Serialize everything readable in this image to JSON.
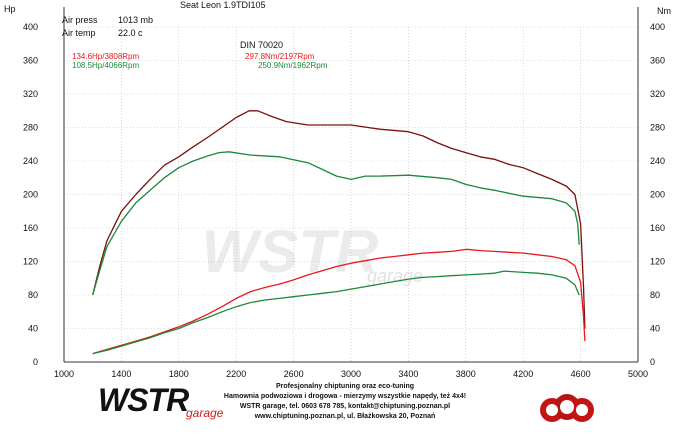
{
  "chart_data": {
    "type": "line",
    "title": "Seat Leon 1.9TDI105",
    "left_axis_label": "Hp",
    "right_axis_label": "Nm",
    "standard": "DIN 70020",
    "conditions": [
      {
        "label": "Air press",
        "value": "1013 mb"
      },
      {
        "label": "Air temp",
        "value": "22.0 c"
      }
    ],
    "xlim": [
      1000,
      5000
    ],
    "ylim": [
      0,
      400
    ],
    "x_ticks": [
      "1000",
      "1400",
      "1800",
      "2200",
      "2600",
      "3000",
      "3400",
      "3800",
      "4200",
      "4600",
      "5000"
    ],
    "y_ticks": [
      "0",
      "40",
      "80",
      "120",
      "160",
      "200",
      "240",
      "280",
      "320",
      "360",
      "400"
    ],
    "grid": true,
    "readouts": [
      {
        "text": "134.6Hp/3808Rpm",
        "color": "#e8191e"
      },
      {
        "text": "297.8Nm/2197Rpm",
        "color": "#e8191e"
      },
      {
        "text": "108.5Hp/4066Rpm",
        "color": "#1a8a3a"
      },
      {
        "text": "250.9Nm/1962Rpm",
        "color": "#1a8a3a"
      }
    ],
    "series": [
      {
        "kind": "torque-after",
        "color": "#7a1010",
        "points": [
          [
            1200,
            80
          ],
          [
            1250,
            115
          ],
          [
            1300,
            145
          ],
          [
            1400,
            180
          ],
          [
            1500,
            200
          ],
          [
            1600,
            218
          ],
          [
            1700,
            235
          ],
          [
            1800,
            245
          ],
          [
            1900,
            257
          ],
          [
            2000,
            268
          ],
          [
            2100,
            280
          ],
          [
            2200,
            292
          ],
          [
            2290,
            300
          ],
          [
            2350,
            300
          ],
          [
            2450,
            293
          ],
          [
            2550,
            287
          ],
          [
            2700,
            283
          ],
          [
            2850,
            283
          ],
          [
            3000,
            283
          ],
          [
            3200,
            278
          ],
          [
            3400,
            275
          ],
          [
            3500,
            270
          ],
          [
            3600,
            262
          ],
          [
            3700,
            255
          ],
          [
            3800,
            250
          ],
          [
            3900,
            245
          ],
          [
            4000,
            242
          ],
          [
            4100,
            236
          ],
          [
            4200,
            232
          ],
          [
            4300,
            225
          ],
          [
            4400,
            218
          ],
          [
            4500,
            210
          ],
          [
            4560,
            200
          ],
          [
            4600,
            165
          ],
          [
            4620,
            90
          ],
          [
            4630,
            40
          ]
        ]
      },
      {
        "kind": "torque-stock",
        "color": "#1a8a3a",
        "points": [
          [
            1200,
            80
          ],
          [
            1250,
            110
          ],
          [
            1300,
            138
          ],
          [
            1400,
            168
          ],
          [
            1500,
            190
          ],
          [
            1600,
            205
          ],
          [
            1700,
            220
          ],
          [
            1800,
            232
          ],
          [
            1900,
            240
          ],
          [
            2000,
            246
          ],
          [
            2080,
            250
          ],
          [
            2150,
            251
          ],
          [
            2300,
            247
          ],
          [
            2500,
            245
          ],
          [
            2700,
            238
          ],
          [
            2800,
            230
          ],
          [
            2900,
            222
          ],
          [
            3000,
            218
          ],
          [
            3100,
            222
          ],
          [
            3200,
            222
          ],
          [
            3400,
            223
          ],
          [
            3600,
            220
          ],
          [
            3700,
            218
          ],
          [
            3800,
            212
          ],
          [
            3900,
            208
          ],
          [
            4000,
            205
          ],
          [
            4200,
            198
          ],
          [
            4400,
            195
          ],
          [
            4500,
            190
          ],
          [
            4560,
            180
          ],
          [
            4580,
            165
          ],
          [
            4590,
            140
          ]
        ]
      },
      {
        "kind": "power-after",
        "color": "#e8191e",
        "points": [
          [
            1200,
            10
          ],
          [
            1300,
            15
          ],
          [
            1400,
            20
          ],
          [
            1500,
            25
          ],
          [
            1600,
            30
          ],
          [
            1700,
            36
          ],
          [
            1800,
            42
          ],
          [
            1900,
            49
          ],
          [
            2000,
            57
          ],
          [
            2100,
            66
          ],
          [
            2200,
            76
          ],
          [
            2300,
            84
          ],
          [
            2400,
            89
          ],
          [
            2500,
            93
          ],
          [
            2600,
            98
          ],
          [
            2700,
            104
          ],
          [
            2800,
            109
          ],
          [
            2900,
            114
          ],
          [
            3000,
            118
          ],
          [
            3100,
            121
          ],
          [
            3200,
            124
          ],
          [
            3300,
            126
          ],
          [
            3400,
            128
          ],
          [
            3500,
            130
          ],
          [
            3600,
            131
          ],
          [
            3700,
            132
          ],
          [
            3808,
            134.6
          ],
          [
            3900,
            133
          ],
          [
            4000,
            132
          ],
          [
            4100,
            131
          ],
          [
            4200,
            130
          ],
          [
            4300,
            128
          ],
          [
            4400,
            126
          ],
          [
            4500,
            122
          ],
          [
            4560,
            115
          ],
          [
            4600,
            95
          ],
          [
            4620,
            55
          ],
          [
            4630,
            25
          ]
        ]
      },
      {
        "kind": "power-stock",
        "color": "#1a8a3a",
        "points": [
          [
            1200,
            10
          ],
          [
            1300,
            14
          ],
          [
            1400,
            19
          ],
          [
            1500,
            24
          ],
          [
            1600,
            29
          ],
          [
            1700,
            35
          ],
          [
            1800,
            40
          ],
          [
            1900,
            47
          ],
          [
            2000,
            53
          ],
          [
            2100,
            60
          ],
          [
            2200,
            66
          ],
          [
            2300,
            71
          ],
          [
            2400,
            74
          ],
          [
            2500,
            76
          ],
          [
            2600,
            78
          ],
          [
            2700,
            80
          ],
          [
            2800,
            82
          ],
          [
            2900,
            84
          ],
          [
            3000,
            87
          ],
          [
            3100,
            90
          ],
          [
            3200,
            93
          ],
          [
            3300,
            96
          ],
          [
            3400,
            99
          ],
          [
            3500,
            101
          ],
          [
            3600,
            102
          ],
          [
            3700,
            103
          ],
          [
            3800,
            104
          ],
          [
            3900,
            105
          ],
          [
            4000,
            106
          ],
          [
            4066,
            108.5
          ],
          [
            4200,
            107
          ],
          [
            4300,
            106
          ],
          [
            4400,
            104
          ],
          [
            4500,
            100
          ],
          [
            4560,
            92
          ],
          [
            4590,
            80
          ]
        ]
      }
    ]
  },
  "watermark": {
    "brand": "WSTR",
    "sub": "garage"
  },
  "footer": {
    "logo_brand": "WSTR",
    "logo_sub": "garage",
    "lines": [
      "Profesjonalny chiptuning oraz eco-tuning",
      "Hamownia podwoziowa i drogowa - mierzymy wszystkie napędy, też 4x4!",
      "WSTR garage, tel. 0603 678 785, kontakt@chiptuning.poznan.pl",
      "www.chiptuning.poznan.pl, ul. Błażkowska 20, Poznań"
    ]
  }
}
